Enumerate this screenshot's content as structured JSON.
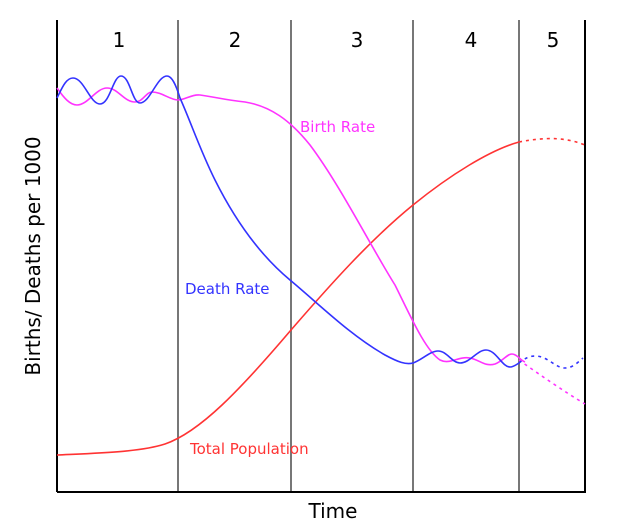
{
  "stages": [
    "1",
    "2",
    "3",
    "4",
    "5"
  ],
  "xlabel": "Time",
  "ylabel": "Births/ Deaths per 1000",
  "series": {
    "birth_rate": {
      "label": "Birth Rate",
      "color": "#ff33ff"
    },
    "death_rate": {
      "label": "Death Rate",
      "color": "#3333ff"
    },
    "total_population": {
      "label": "Total Population",
      "color": "#ff3333"
    }
  }
}
